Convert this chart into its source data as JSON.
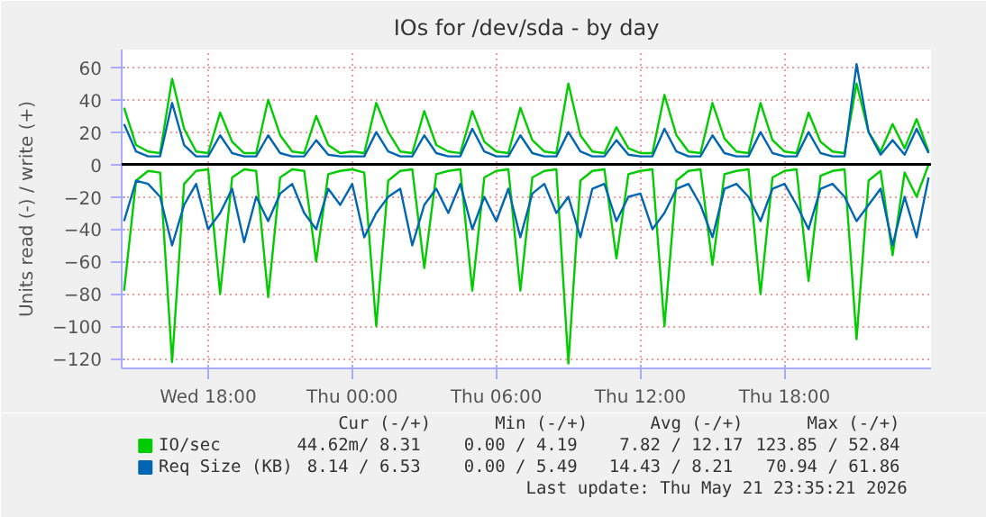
{
  "chart_data": {
    "type": "line",
    "title": "IOs for /dev/sda - by day",
    "ylabel": "Units read (-) / write (+)",
    "x": [
      "2026-05-20T14:30",
      "2026-05-20T15:00",
      "2026-05-20T15:30",
      "2026-05-20T16:00",
      "2026-05-20T16:30",
      "2026-05-20T17:00",
      "2026-05-20T17:30",
      "2026-05-20T18:00",
      "2026-05-20T18:30",
      "2026-05-20T19:00",
      "2026-05-20T19:30",
      "2026-05-20T20:00",
      "2026-05-20T20:30",
      "2026-05-20T21:00",
      "2026-05-20T21:30",
      "2026-05-20T22:00",
      "2026-05-20T22:30",
      "2026-05-20T23:00",
      "2026-05-20T23:30",
      "2026-05-21T00:00",
      "2026-05-21T00:30",
      "2026-05-21T01:00",
      "2026-05-21T01:30",
      "2026-05-21T02:00",
      "2026-05-21T02:30",
      "2026-05-21T03:00",
      "2026-05-21T03:30",
      "2026-05-21T04:00",
      "2026-05-21T04:30",
      "2026-05-21T05:00",
      "2026-05-21T05:30",
      "2026-05-21T06:00",
      "2026-05-21T06:30",
      "2026-05-21T07:00",
      "2026-05-21T07:30",
      "2026-05-21T08:00",
      "2026-05-21T08:30",
      "2026-05-21T09:00",
      "2026-05-21T09:30",
      "2026-05-21T10:00",
      "2026-05-21T10:30",
      "2026-05-21T11:00",
      "2026-05-21T11:30",
      "2026-05-21T12:00",
      "2026-05-21T12:30",
      "2026-05-21T13:00",
      "2026-05-21T13:30",
      "2026-05-21T14:00",
      "2026-05-21T14:30",
      "2026-05-21T15:00",
      "2026-05-21T15:30",
      "2026-05-21T16:00",
      "2026-05-21T16:30",
      "2026-05-21T17:00",
      "2026-05-21T17:30",
      "2026-05-21T18:00",
      "2026-05-21T18:30",
      "2026-05-21T19:00",
      "2026-05-21T19:30",
      "2026-05-21T20:00",
      "2026-05-21T20:30",
      "2026-05-21T21:00",
      "2026-05-21T21:30",
      "2026-05-21T22:00",
      "2026-05-21T22:30",
      "2026-05-21T23:00",
      "2026-05-21T23:30",
      "2026-05-22T00:00"
    ],
    "series": [
      {
        "name": "IO/sec",
        "color": "#00cc00",
        "values": [
          35,
          12,
          8,
          7,
          53,
          22,
          8,
          7,
          32,
          14,
          7,
          7,
          40,
          18,
          8,
          7,
          30,
          12,
          7,
          8,
          7,
          38,
          20,
          8,
          7,
          33,
          12,
          8,
          7,
          33,
          14,
          8,
          7,
          35,
          15,
          8,
          7,
          50,
          18,
          8,
          7,
          23,
          10,
          7,
          7,
          43,
          18,
          8,
          7,
          38,
          16,
          8,
          7,
          38,
          15,
          8,
          7,
          32,
          14,
          8,
          7,
          50,
          20,
          8,
          25,
          10,
          28,
          8
        ]
      },
      {
        "color": "#00cc00",
        "values": [
          -78,
          -10,
          -4,
          -5,
          -122,
          -12,
          -4,
          -3,
          -80,
          -8,
          -3,
          -4,
          -82,
          -8,
          -3,
          -4,
          -60,
          -6,
          -4,
          -3,
          -5,
          -100,
          -10,
          -4,
          -3,
          -64,
          -6,
          -4,
          -3,
          -78,
          -8,
          -4,
          -3,
          -78,
          -8,
          -4,
          -3,
          -123,
          -10,
          -4,
          -3,
          -58,
          -6,
          -4,
          -3,
          -100,
          -10,
          -4,
          -3,
          -62,
          -6,
          -4,
          -3,
          -80,
          -8,
          -4,
          -3,
          -72,
          -7,
          -4,
          -3,
          -108,
          -10,
          -4,
          -56,
          -5,
          -20,
          0
        ]
      },
      {
        "name": "Req Size (KB)",
        "color": "#0066b3",
        "values": [
          25,
          8,
          5,
          5,
          38,
          12,
          5,
          5,
          18,
          7,
          5,
          5,
          18,
          7,
          5,
          5,
          15,
          6,
          5,
          5,
          5,
          20,
          8,
          5,
          5,
          18,
          7,
          5,
          5,
          22,
          8,
          5,
          5,
          18,
          7,
          5,
          5,
          20,
          8,
          5,
          5,
          15,
          6,
          5,
          5,
          22,
          8,
          5,
          5,
          18,
          7,
          5,
          5,
          20,
          7,
          5,
          5,
          20,
          7,
          5,
          5,
          62,
          20,
          6,
          15,
          6,
          22,
          7
        ]
      },
      {
        "color": "#0066b3",
        "values": [
          -35,
          -10,
          -12,
          -20,
          -50,
          -25,
          -12,
          -40,
          -30,
          -15,
          -48,
          -20,
          -35,
          -18,
          -12,
          -30,
          -40,
          -15,
          -25,
          -12,
          -45,
          -30,
          -20,
          -15,
          -50,
          -25,
          -15,
          -30,
          -12,
          -40,
          -20,
          -35,
          -15,
          -45,
          -18,
          -12,
          -30,
          -20,
          -45,
          -15,
          -12,
          -35,
          -20,
          -18,
          -40,
          -30,
          -15,
          -12,
          -25,
          -45,
          -15,
          -12,
          -20,
          -35,
          -15,
          -12,
          -25,
          -40,
          -15,
          -12,
          -20,
          -35,
          -25,
          -15,
          -50,
          -20,
          -45,
          -8
        ]
      }
    ],
    "xlim": [
      "2026-05-20T14:24",
      "2026-05-22T00:06"
    ],
    "ylim": [
      -126,
      71
    ],
    "xticks": [
      {
        "value": "2026-05-20T18:00",
        "label": "Wed 18:00"
      },
      {
        "value": "2026-05-21T00:00",
        "label": "Thu 00:00"
      },
      {
        "value": "2026-05-21T06:00",
        "label": "Thu 06:00"
      },
      {
        "value": "2026-05-21T12:00",
        "label": "Thu 12:00"
      },
      {
        "value": "2026-05-21T18:00",
        "label": "Thu 18:00"
      }
    ],
    "yticks": [
      -120,
      -100,
      -80,
      -60,
      -40,
      -20,
      0,
      20,
      40,
      60
    ],
    "ref_lines": [
      {
        "axis": "y",
        "value": 0,
        "color": "#000000"
      }
    ],
    "grid": true,
    "legend": "bottom",
    "line_style": "solid",
    "marker": "none",
    "annotations": [
      "Cur (-/+)",
      "Min (-/+)",
      "Avg (-/+)",
      "Max (-/+)",
      "44.62m/  8.31",
      "0.00 /  4.19",
      "7.82 / 12.17",
      "123.85 / 52.84",
      "8.14 /  6.53",
      "0.00 /  5.49",
      "14.43 /  8.21",
      "70.94 / 61.86",
      "Last update: Thu May 21 23:35:21 2026"
    ]
  }
}
